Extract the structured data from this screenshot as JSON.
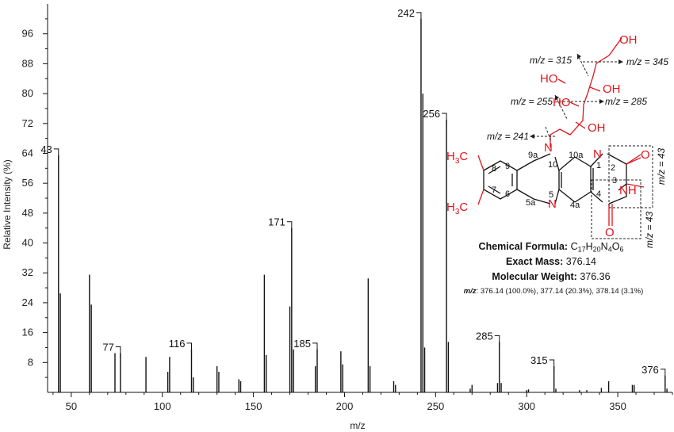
{
  "chart_data": {
    "type": "bar",
    "xlabel": "m/z",
    "ylabel": "Relative Intensity (%)",
    "xlim": [
      37,
      380
    ],
    "ylim": [
      0,
      104
    ],
    "x_ticks": [
      50,
      100,
      150,
      200,
      250,
      300,
      350
    ],
    "y_ticks": [
      8,
      16,
      24,
      32,
      40,
      48,
      56,
      64,
      72,
      80,
      88,
      96
    ],
    "peaks": [
      {
        "mz": 43,
        "intensity": 63.5
      },
      {
        "mz": 44,
        "intensity": 26.5
      },
      {
        "mz": 60,
        "intensity": 31.5
      },
      {
        "mz": 61,
        "intensity": 23.5
      },
      {
        "mz": 74,
        "intensity": 10.5
      },
      {
        "mz": 77,
        "intensity": 10.5
      },
      {
        "mz": 91,
        "intensity": 9.5
      },
      {
        "mz": 103,
        "intensity": 5.5
      },
      {
        "mz": 104,
        "intensity": 9.5
      },
      {
        "mz": 116,
        "intensity": 11.5
      },
      {
        "mz": 117,
        "intensity": 4.0
      },
      {
        "mz": 130,
        "intensity": 7.0
      },
      {
        "mz": 131,
        "intensity": 5.5
      },
      {
        "mz": 142,
        "intensity": 3.5
      },
      {
        "mz": 143,
        "intensity": 3.0
      },
      {
        "mz": 156,
        "intensity": 31.5
      },
      {
        "mz": 157,
        "intensity": 10.0
      },
      {
        "mz": 170,
        "intensity": 23.0
      },
      {
        "mz": 171,
        "intensity": 44.0
      },
      {
        "mz": 172,
        "intensity": 11.5
      },
      {
        "mz": 184,
        "intensity": 7.0
      },
      {
        "mz": 185,
        "intensity": 11.5
      },
      {
        "mz": 198,
        "intensity": 11.0
      },
      {
        "mz": 199,
        "intensity": 7.5
      },
      {
        "mz": 213,
        "intensity": 30.5
      },
      {
        "mz": 214,
        "intensity": 7.0
      },
      {
        "mz": 227,
        "intensity": 3.0
      },
      {
        "mz": 228,
        "intensity": 2.0
      },
      {
        "mz": 242,
        "intensity": 100.0
      },
      {
        "mz": 243,
        "intensity": 80.0
      },
      {
        "mz": 244,
        "intensity": 12.0
      },
      {
        "mz": 256,
        "intensity": 73.0
      },
      {
        "mz": 257,
        "intensity": 13.5
      },
      {
        "mz": 269,
        "intensity": 1.0
      },
      {
        "mz": 270,
        "intensity": 2.0
      },
      {
        "mz": 284,
        "intensity": 2.5
      },
      {
        "mz": 285,
        "intensity": 13.5
      },
      {
        "mz": 286,
        "intensity": 2.5
      },
      {
        "mz": 300,
        "intensity": 0.6
      },
      {
        "mz": 301,
        "intensity": 0.8
      },
      {
        "mz": 315,
        "intensity": 7.0
      },
      {
        "mz": 316,
        "intensity": 1.0
      },
      {
        "mz": 329,
        "intensity": 0.6
      },
      {
        "mz": 333,
        "intensity": 0.6
      },
      {
        "mz": 341,
        "intensity": 1.2
      },
      {
        "mz": 345,
        "intensity": 3.0
      },
      {
        "mz": 358,
        "intensity": 2.0
      },
      {
        "mz": 359,
        "intensity": 2.0
      },
      {
        "mz": 376,
        "intensity": 4.5
      },
      {
        "mz": 377,
        "intensity": 1.0
      }
    ],
    "peak_labels": [
      {
        "mz": 43,
        "intensity": 63.5,
        "text": "43"
      },
      {
        "mz": 77,
        "intensity": 10.5,
        "text": "77"
      },
      {
        "mz": 116,
        "intensity": 11.5,
        "text": "116"
      },
      {
        "mz": 171,
        "intensity": 44.0,
        "text": "171"
      },
      {
        "mz": 185,
        "intensity": 11.5,
        "text": "185"
      },
      {
        "mz": 242,
        "intensity": 100.0,
        "text": "242"
      },
      {
        "mz": 256,
        "intensity": 73.0,
        "text": "256"
      },
      {
        "mz": 285,
        "intensity": 13.5,
        "text": "285"
      },
      {
        "mz": 315,
        "intensity": 7.0,
        "text": "315"
      },
      {
        "mz": 376,
        "intensity": 4.5,
        "text": "376"
      }
    ]
  },
  "compound": {
    "formula_label": "Chemical Formula:",
    "formula_C": "C",
    "formula_C_sub": "17",
    "formula_H": "H",
    "formula_H_sub": "20",
    "formula_N": "N",
    "formula_N_sub": "4",
    "formula_O": "O",
    "formula_O_sub": "6",
    "exact_mass_label": "Exact Mass:",
    "exact_mass": "376.14",
    "mw_label": "Molecular Weight:",
    "mw": "376.36",
    "mz_label": "m/z",
    "mz_values": ": 376.14 (100.0%), 377.14 (20.3%), 378.14 (3.1%)"
  },
  "structure": {
    "substituent_color": "#e0161c",
    "methyl_top": "H3C",
    "methyl_bottom": "H3C",
    "fragment_labels": [
      "m/z = 315",
      "m/z = 345",
      "m/z = 255",
      "m/z = 285",
      "m/z = 241",
      "m/z = 43",
      "m/z = 43"
    ],
    "atom_labels": [
      "OH",
      "HO",
      "OH",
      "HO",
      "OH",
      "N",
      "N",
      "N",
      "NH",
      "O",
      "O"
    ],
    "ring_numbers": [
      "9a",
      "10",
      "10a",
      "1",
      "2",
      "3",
      "4",
      "4a",
      "5",
      "5a",
      "6",
      "7",
      "8",
      "9"
    ]
  }
}
